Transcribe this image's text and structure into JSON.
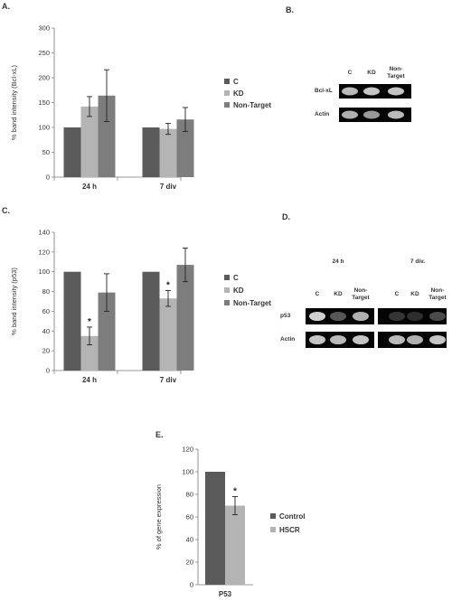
{
  "panels": {
    "A": "A.",
    "B": "B.",
    "C": "C.",
    "D": "D.",
    "E": "E."
  },
  "chart_data": [
    {
      "panel": "A.",
      "type": "bar",
      "title": "",
      "xlabel": "",
      "ylabel": "% band intensity (Bcl-xL)",
      "ylim": [
        0,
        300
      ],
      "yticks": [
        0,
        50,
        100,
        150,
        200,
        250,
        300
      ],
      "categories": [
        "24 h",
        "7 div"
      ],
      "series": [
        {
          "name": "C",
          "color": "#5a5a5a",
          "values": [
            100,
            100
          ],
          "errors": [
            0,
            0
          ]
        },
        {
          "name": "KD",
          "color": "#b4b4b4",
          "values": [
            142,
            97
          ],
          "errors": [
            20,
            11
          ]
        },
        {
          "name": "Non-Target",
          "color": "#7d7d7d",
          "values": [
            164,
            116
          ],
          "errors": [
            52,
            24
          ]
        }
      ],
      "significance": [],
      "legend": "right"
    },
    {
      "panel": "C.",
      "type": "bar",
      "title": "",
      "xlabel": "",
      "ylabel": "% band intensity (p53)",
      "ylim": [
        0,
        140
      ],
      "yticks": [
        0,
        20,
        40,
        60,
        80,
        100,
        120,
        140
      ],
      "categories": [
        "24 h",
        "7 div"
      ],
      "series": [
        {
          "name": "C",
          "color": "#5a5a5a",
          "values": [
            100,
            100
          ],
          "errors": [
            0,
            0
          ]
        },
        {
          "name": "KD",
          "color": "#b4b4b4",
          "values": [
            35,
            73
          ],
          "errors": [
            9,
            8
          ]
        },
        {
          "name": "Non-Target",
          "color": "#7d7d7d",
          "values": [
            79,
            107
          ],
          "errors": [
            19,
            17
          ]
        }
      ],
      "significance": [
        {
          "category": "24 h",
          "series": "KD",
          "mark": "*"
        },
        {
          "category": "7 div",
          "series": "KD",
          "mark": "*"
        }
      ],
      "legend": "right"
    },
    {
      "panel": "E.",
      "type": "bar",
      "title": "",
      "xlabel": "",
      "ylabel": "% of gene expression",
      "ylim": [
        0,
        120
      ],
      "yticks": [
        0,
        20,
        40,
        60,
        80,
        100,
        120
      ],
      "categories": [
        "P53"
      ],
      "series": [
        {
          "name": "Control",
          "color": "#5a5a5a",
          "values": [
            100
          ],
          "errors": [
            0
          ]
        },
        {
          "name": "HSCR",
          "color": "#b4b4b4",
          "values": [
            70
          ],
          "errors": [
            8
          ]
        }
      ],
      "significance": [
        {
          "category": "P53",
          "series": "HSCR",
          "mark": "*"
        }
      ],
      "legend": "right"
    }
  ],
  "gels": {
    "B": {
      "lanes": [
        "C",
        "KD",
        "Non-\nTarget"
      ],
      "rows": [
        {
          "label": "Bcl-xL",
          "intensity": [
            0.75,
            0.8,
            0.8
          ]
        },
        {
          "label": "Actin",
          "intensity": [
            0.7,
            0.6,
            0.75
          ]
        }
      ]
    },
    "D": {
      "groups": [
        {
          "title": "24 h",
          "lanes": [
            "C",
            "KD",
            "Non-\nTarget"
          ],
          "rows": [
            {
              "label": "p53",
              "intensity": [
                0.85,
                0.3,
                0.7
              ]
            },
            {
              "label": "Actin",
              "intensity": [
                0.8,
                0.75,
                0.8
              ]
            }
          ]
        },
        {
          "title": "7 div.",
          "lanes": [
            "C",
            "KD",
            "Non-\nTarget"
          ],
          "rows": [
            {
              "label": "p53",
              "intensity": [
                0.15,
                0.12,
                0.25
              ]
            },
            {
              "label": "Actin",
              "intensity": [
                0.75,
                0.7,
                0.8
              ]
            }
          ]
        }
      ]
    }
  }
}
